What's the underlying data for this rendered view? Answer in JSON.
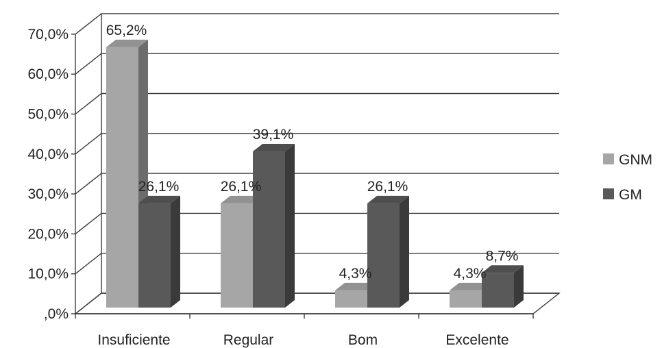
{
  "chart_data": {
    "type": "bar",
    "categories": [
      "Insuficiente",
      "Regular",
      "Bom",
      "Excelente"
    ],
    "series": [
      {
        "name": "GNM",
        "values": [
          65.2,
          26.1,
          4.3,
          4.3
        ],
        "labels": [
          "65,2%",
          "26,1%",
          "4,3%",
          "4,3%"
        ],
        "color": "#a6a6a6"
      },
      {
        "name": "GM",
        "values": [
          26.1,
          39.1,
          26.1,
          8.7
        ],
        "labels": [
          "26,1%",
          "39,1%",
          "26,1%",
          "8,7%"
        ],
        "color": "#595959"
      }
    ],
    "yticks": [
      ",0%",
      "10,0%",
      "20,0%",
      "30,0%",
      "40,0%",
      "50,0%",
      "60,0%",
      "70,0%"
    ],
    "ylim": [
      0,
      70
    ],
    "grid": true,
    "legend_position": "right",
    "style": "3d-clustered-column"
  }
}
